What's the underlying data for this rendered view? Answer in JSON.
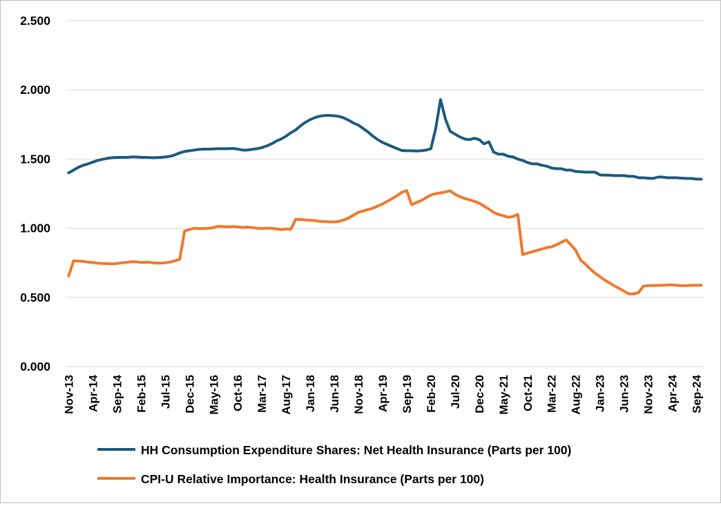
{
  "chart_data": {
    "type": "line",
    "title": "",
    "xlabel": "",
    "ylabel": "",
    "ylim": [
      0,
      2.5
    ],
    "y_ticks": [
      0,
      0.5,
      1.0,
      1.5,
      2.0,
      2.5
    ],
    "y_tick_labels": [
      "0.000",
      "0.500",
      "1.000",
      "1.500",
      "2.000",
      "2.500"
    ],
    "grid": "horizontal",
    "legend_position": "bottom",
    "x_start": "Nov-13",
    "x_end": "Oct-24",
    "x_tick_labels": [
      "Nov-13",
      "Apr-14",
      "Sep-14",
      "Feb-15",
      "Jul-15",
      "Dec-15",
      "May-16",
      "Oct-16",
      "Mar-17",
      "Aug-17",
      "Jan-18",
      "Jun-18",
      "Nov-18",
      "Apr-19",
      "Sep-19",
      "Feb-20",
      "Jul-20",
      "Dec-20",
      "May-21",
      "Oct-21",
      "Mar-22",
      "Aug-22",
      "Jan-23",
      "Jun-23",
      "Nov-23",
      "Apr-24",
      "Sep-24"
    ],
    "series": [
      {
        "name": "HH Consumption Expenditure Shares: Net Health Insurance (Parts per 100)",
        "color": "#1b5a7e",
        "points": [
          [
            0,
            1.4
          ],
          [
            1,
            1.42
          ],
          [
            2,
            1.44
          ],
          [
            3,
            1.455
          ],
          [
            4,
            1.465
          ],
          [
            5,
            1.478
          ],
          [
            6,
            1.49
          ],
          [
            7,
            1.498
          ],
          [
            8,
            1.505
          ],
          [
            9,
            1.51
          ],
          [
            10,
            1.512
          ],
          [
            11,
            1.512
          ],
          [
            12,
            1.512
          ],
          [
            13,
            1.515
          ],
          [
            14,
            1.515
          ],
          [
            15,
            1.512
          ],
          [
            16,
            1.512
          ],
          [
            17,
            1.51
          ],
          [
            18,
            1.51
          ],
          [
            19,
            1.512
          ],
          [
            20,
            1.515
          ],
          [
            21,
            1.52
          ],
          [
            22,
            1.53
          ],
          [
            23,
            1.545
          ],
          [
            24,
            1.555
          ],
          [
            25,
            1.56
          ],
          [
            26,
            1.565
          ],
          [
            27,
            1.57
          ],
          [
            28,
            1.572
          ],
          [
            29,
            1.572
          ],
          [
            30,
            1.573
          ],
          [
            31,
            1.575
          ],
          [
            32,
            1.575
          ],
          [
            33,
            1.575
          ],
          [
            34,
            1.577
          ],
          [
            35,
            1.572
          ],
          [
            36,
            1.565
          ],
          [
            37,
            1.565
          ],
          [
            38,
            1.57
          ],
          [
            39,
            1.575
          ],
          [
            40,
            1.583
          ],
          [
            41,
            1.595
          ],
          [
            42,
            1.61
          ],
          [
            43,
            1.63
          ],
          [
            44,
            1.645
          ],
          [
            45,
            1.665
          ],
          [
            46,
            1.69
          ],
          [
            47,
            1.71
          ],
          [
            48,
            1.74
          ],
          [
            49,
            1.765
          ],
          [
            50,
            1.785
          ],
          [
            51,
            1.8
          ],
          [
            52,
            1.81
          ],
          [
            53,
            1.815
          ],
          [
            54,
            1.815
          ],
          [
            55,
            1.813
          ],
          [
            56,
            1.808
          ],
          [
            57,
            1.797
          ],
          [
            58,
            1.78
          ],
          [
            59,
            1.76
          ],
          [
            60,
            1.745
          ],
          [
            61,
            1.72
          ],
          [
            62,
            1.695
          ],
          [
            63,
            1.665
          ],
          [
            64,
            1.64
          ],
          [
            65,
            1.62
          ],
          [
            66,
            1.605
          ],
          [
            67,
            1.59
          ],
          [
            68,
            1.575
          ],
          [
            69,
            1.562
          ],
          [
            70,
            1.56
          ],
          [
            71,
            1.56
          ],
          [
            72,
            1.558
          ],
          [
            73,
            1.56
          ],
          [
            74,
            1.565
          ],
          [
            75,
            1.575
          ],
          [
            76,
            1.72
          ],
          [
            77,
            1.93
          ],
          [
            78,
            1.79
          ],
          [
            79,
            1.7
          ],
          [
            80,
            1.68
          ],
          [
            81,
            1.66
          ],
          [
            82,
            1.645
          ],
          [
            83,
            1.64
          ],
          [
            84,
            1.65
          ],
          [
            85,
            1.64
          ],
          [
            86,
            1.61
          ],
          [
            87,
            1.625
          ],
          [
            88,
            1.55
          ],
          [
            89,
            1.535
          ],
          [
            90,
            1.535
          ],
          [
            91,
            1.52
          ],
          [
            92,
            1.515
          ],
          [
            93,
            1.5
          ],
          [
            94,
            1.49
          ],
          [
            95,
            1.475
          ],
          [
            96,
            1.465
          ],
          [
            97,
            1.465
          ],
          [
            98,
            1.455
          ],
          [
            99,
            1.448
          ],
          [
            100,
            1.435
          ],
          [
            101,
            1.43
          ],
          [
            102,
            1.43
          ],
          [
            103,
            1.42
          ],
          [
            104,
            1.42
          ],
          [
            105,
            1.41
          ],
          [
            106,
            1.408
          ],
          [
            107,
            1.405
          ],
          [
            108,
            1.405
          ],
          [
            109,
            1.405
          ],
          [
            110,
            1.385
          ],
          [
            111,
            1.383
          ],
          [
            112,
            1.383
          ],
          [
            113,
            1.38
          ],
          [
            114,
            1.38
          ],
          [
            115,
            1.38
          ],
          [
            116,
            1.375
          ],
          [
            117,
            1.375
          ],
          [
            118,
            1.365
          ],
          [
            119,
            1.365
          ],
          [
            120,
            1.362
          ],
          [
            121,
            1.36
          ],
          [
            122,
            1.37
          ],
          [
            123,
            1.37
          ],
          [
            124,
            1.365
          ],
          [
            125,
            1.365
          ],
          [
            126,
            1.365
          ],
          [
            127,
            1.362
          ],
          [
            128,
            1.36
          ],
          [
            129,
            1.36
          ],
          [
            130,
            1.355
          ],
          [
            131,
            1.355
          ]
        ]
      },
      {
        "name": "CPI-U Relative Importance: Health Insurance (Parts per 100)",
        "color": "#f0782b",
        "points": [
          [
            0,
            0.655
          ],
          [
            1,
            0.765
          ],
          [
            2,
            0.763
          ],
          [
            3,
            0.76
          ],
          [
            4,
            0.755
          ],
          [
            5,
            0.752
          ],
          [
            6,
            0.748
          ],
          [
            7,
            0.745
          ],
          [
            8,
            0.745
          ],
          [
            9,
            0.742
          ],
          [
            10,
            0.745
          ],
          [
            11,
            0.75
          ],
          [
            12,
            0.753
          ],
          [
            13,
            0.758
          ],
          [
            14,
            0.757
          ],
          [
            15,
            0.752
          ],
          [
            16,
            0.755
          ],
          [
            17,
            0.752
          ],
          [
            18,
            0.748
          ],
          [
            19,
            0.748
          ],
          [
            20,
            0.75
          ],
          [
            21,
            0.755
          ],
          [
            22,
            0.765
          ],
          [
            23,
            0.775
          ],
          [
            24,
            0.98
          ],
          [
            25,
            0.99
          ],
          [
            26,
            1.0
          ],
          [
            27,
            0.997
          ],
          [
            28,
            0.998
          ],
          [
            29,
            1.0
          ],
          [
            30,
            1.005
          ],
          [
            31,
            1.015
          ],
          [
            32,
            1.012
          ],
          [
            33,
            1.01
          ],
          [
            34,
            1.012
          ],
          [
            35,
            1.01
          ],
          [
            36,
            1.005
          ],
          [
            37,
            1.008
          ],
          [
            38,
            1.005
          ],
          [
            39,
            1.0
          ],
          [
            40,
            0.998
          ],
          [
            41,
            1.0
          ],
          [
            42,
            1.0
          ],
          [
            43,
            0.995
          ],
          [
            44,
            0.99
          ],
          [
            45,
            0.995
          ],
          [
            46,
            0.992
          ],
          [
            47,
            1.065
          ],
          [
            48,
            1.063
          ],
          [
            49,
            1.06
          ],
          [
            50,
            1.058
          ],
          [
            51,
            1.055
          ],
          [
            52,
            1.05
          ],
          [
            53,
            1.048
          ],
          [
            54,
            1.046
          ],
          [
            55,
            1.045
          ],
          [
            56,
            1.05
          ],
          [
            57,
            1.06
          ],
          [
            58,
            1.075
          ],
          [
            59,
            1.095
          ],
          [
            60,
            1.115
          ],
          [
            61,
            1.125
          ],
          [
            62,
            1.135
          ],
          [
            63,
            1.145
          ],
          [
            64,
            1.16
          ],
          [
            65,
            1.175
          ],
          [
            66,
            1.195
          ],
          [
            67,
            1.215
          ],
          [
            68,
            1.235
          ],
          [
            69,
            1.26
          ],
          [
            70,
            1.272
          ],
          [
            71,
            1.17
          ],
          [
            72,
            1.185
          ],
          [
            73,
            1.2
          ],
          [
            74,
            1.22
          ],
          [
            75,
            1.24
          ],
          [
            76,
            1.25
          ],
          [
            77,
            1.255
          ],
          [
            78,
            1.262
          ],
          [
            79,
            1.27
          ],
          [
            80,
            1.245
          ],
          [
            81,
            1.228
          ],
          [
            82,
            1.215
          ],
          [
            83,
            1.205
          ],
          [
            84,
            1.195
          ],
          [
            85,
            1.18
          ],
          [
            86,
            1.16
          ],
          [
            87,
            1.138
          ],
          [
            88,
            1.115
          ],
          [
            89,
            1.1
          ],
          [
            90,
            1.09
          ],
          [
            91,
            1.08
          ],
          [
            92,
            1.085
          ],
          [
            93,
            1.1
          ],
          [
            94,
            0.81
          ],
          [
            95,
            0.82
          ],
          [
            96,
            0.83
          ],
          [
            97,
            0.84
          ],
          [
            98,
            0.85
          ],
          [
            99,
            0.86
          ],
          [
            100,
            0.865
          ],
          [
            101,
            0.88
          ],
          [
            102,
            0.898
          ],
          [
            103,
            0.915
          ],
          [
            104,
            0.88
          ],
          [
            105,
            0.84
          ],
          [
            106,
            0.77
          ],
          [
            107,
            0.74
          ],
          [
            108,
            0.705
          ],
          [
            109,
            0.675
          ],
          [
            110,
            0.65
          ],
          [
            111,
            0.625
          ],
          [
            112,
            0.605
          ],
          [
            113,
            0.583
          ],
          [
            114,
            0.565
          ],
          [
            115,
            0.545
          ],
          [
            116,
            0.525
          ],
          [
            117,
            0.525
          ],
          [
            118,
            0.535
          ],
          [
            119,
            0.582
          ],
          [
            120,
            0.585
          ],
          [
            121,
            0.585
          ],
          [
            122,
            0.587
          ],
          [
            123,
            0.588
          ],
          [
            124,
            0.59
          ],
          [
            125,
            0.59
          ],
          [
            126,
            0.587
          ],
          [
            127,
            0.585
          ],
          [
            128,
            0.585
          ],
          [
            129,
            0.588
          ],
          [
            130,
            0.588
          ],
          [
            131,
            0.588
          ]
        ]
      }
    ]
  }
}
